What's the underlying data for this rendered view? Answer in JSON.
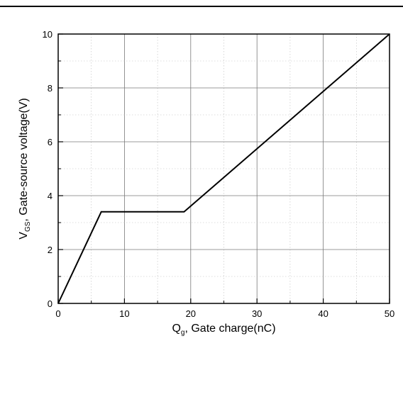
{
  "chart_data": {
    "type": "line",
    "title": "",
    "x_axis": {
      "label_main": "Q",
      "label_sub": "g",
      "label_rest": ", Gate charge(nC)",
      "range": [
        0,
        50
      ],
      "ticks": [
        "0",
        "10",
        "20",
        "30",
        "40",
        "50"
      ],
      "tick_values": [
        0,
        10,
        20,
        30,
        40,
        50
      ]
    },
    "y_axis": {
      "label_main": "V",
      "label_sub": "GS",
      "label_rest": ", Gate-source voltage(V)",
      "range": [
        0,
        10
      ],
      "ticks": [
        "0",
        "2",
        "4",
        "6",
        "8",
        "10"
      ],
      "tick_values": [
        0,
        2,
        4,
        6,
        8,
        10
      ]
    },
    "grid": true,
    "series": [
      {
        "x": [
          0,
          6.5,
          19,
          50
        ],
        "y": [
          0,
          3.4,
          3.4,
          10
        ]
      }
    ]
  }
}
